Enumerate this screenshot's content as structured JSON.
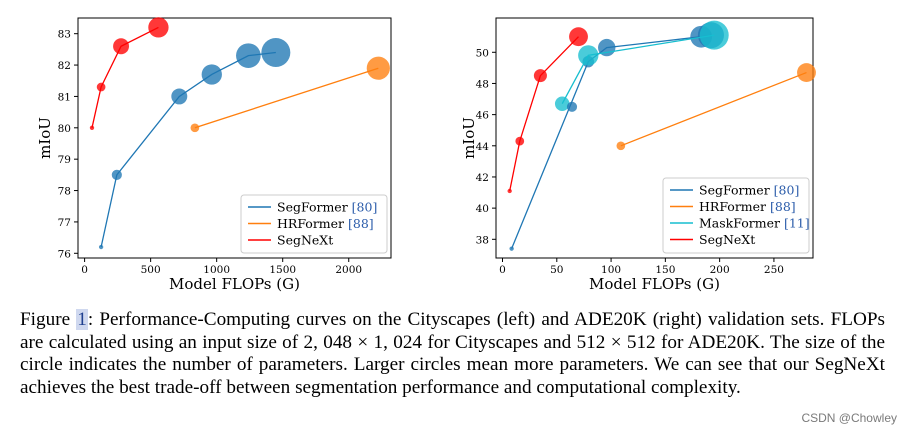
{
  "chart_data": [
    {
      "type": "scatter",
      "title": "",
      "xlabel": "Model FLOPs (G)",
      "ylabel": "mIoU",
      "xlim": [
        -50,
        2320
      ],
      "ylim": [
        75.85,
        83.5
      ],
      "xticks": [
        0,
        500,
        1000,
        1500,
        2000
      ],
      "yticks": [
        76,
        77,
        78,
        79,
        80,
        81,
        82,
        83
      ],
      "legend_position": "lower-right",
      "series": [
        {
          "name": "SegFormer",
          "cite": "80",
          "color": "#1f77b4",
          "points": [
            {
              "x": 125,
              "y": 76.2,
              "size": 1.5
            },
            {
              "x": 244,
              "y": 78.5,
              "size": 3.5
            },
            {
              "x": 717,
              "y": 81.0,
              "size": 5.5
            },
            {
              "x": 963,
              "y": 81.7,
              "size": 7
            },
            {
              "x": 1240,
              "y": 82.3,
              "size": 8.5
            },
            {
              "x": 1448,
              "y": 82.4,
              "size": 10
            }
          ]
        },
        {
          "name": "HRFormer",
          "cite": "88",
          "color": "#ff7f0e",
          "points": [
            {
              "x": 835,
              "y": 80.0,
              "size": 3
            },
            {
              "x": 2224,
              "y": 81.9,
              "size": 8
            }
          ]
        },
        {
          "name": "SegNeXt",
          "cite": "",
          "color": "#ff0000",
          "points": [
            {
              "x": 56,
              "y": 80.0,
              "size": 1.5
            },
            {
              "x": 125,
              "y": 81.3,
              "size": 3
            },
            {
              "x": 276,
              "y": 82.6,
              "size": 5.5
            },
            {
              "x": 559,
              "y": 83.2,
              "size": 7
            }
          ]
        }
      ]
    },
    {
      "type": "scatter",
      "title": "",
      "xlabel": "Model FLOPs (G)",
      "ylabel": "mIoU",
      "xlim": [
        -6,
        286
      ],
      "ylim": [
        36.8,
        52.2
      ],
      "xticks": [
        0,
        50,
        100,
        150,
        200,
        250
      ],
      "yticks": [
        38,
        40,
        42,
        44,
        46,
        48,
        50
      ],
      "legend_position": "lower-right",
      "series": [
        {
          "name": "SegFormer",
          "cite": "80",
          "color": "#1f77b4",
          "points": [
            {
              "x": 8.4,
              "y": 37.4,
              "size": 1.5
            },
            {
              "x": 79,
              "y": 49.4,
              "size": 4
            },
            {
              "x": 96,
              "y": 50.3,
              "size": 6
            },
            {
              "x": 183,
              "y": 51.0,
              "size": 7.5
            },
            {
              "x": 192,
              "y": 51.1,
              "size": 9
            }
          ]
        },
        {
          "name": "HRFormer",
          "cite": "88",
          "color": "#ff7f0e",
          "points": [
            {
              "x": 109,
              "y": 44.0,
              "size": 3
            },
            {
              "x": 280,
              "y": 48.7,
              "size": 6.5
            }
          ]
        },
        {
          "name": "MaskFormer",
          "cite": "11",
          "color": "#17becf",
          "points": [
            {
              "x": 55,
              "y": 46.7,
              "size": 5
            },
            {
              "x": 79,
              "y": 49.8,
              "size": 7
            },
            {
              "x": 195,
              "y": 51.1,
              "size": 10
            }
          ]
        },
        {
          "name": "SegNeXt",
          "cite": "",
          "color": "#ff0000",
          "points": [
            {
              "x": 6.6,
              "y": 41.1,
              "size": 1.5
            },
            {
              "x": 15.9,
              "y": 44.3,
              "size": 3
            },
            {
              "x": 34.9,
              "y": 48.5,
              "size": 4.5
            },
            {
              "x": 70,
              "y": 51.0,
              "size": 6.5
            }
          ]
        }
      ],
      "extra_points": [
        {
          "x": 64,
          "y": 46.5,
          "size": 3.5,
          "color": "#1f77b4"
        }
      ]
    }
  ],
  "caption": {
    "label": "Figure",
    "number": "1",
    "text_before_size": ": Performance-Computing curves on the Cityscapes (left) and ADE20K (right) validation sets. FLOPs are calculated using an input size of ",
    "size1": "2, 048 × 1, 024",
    "mid": " for Cityscapes and ",
    "size2": "512 × 512",
    "text_after": " for ADE20K. The size of the circle indicates the number of parameters. Larger circles mean more parameters. We can see that our SegNeXt achieves the best trade-off between segmentation performance and computational complexity."
  },
  "watermark": "CSDN @Chowley"
}
